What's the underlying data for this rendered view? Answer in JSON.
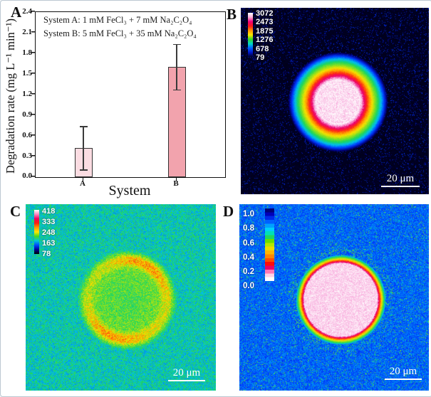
{
  "panel_a": {
    "label": "A",
    "legend_line1": "System A: 1 mM FeCl₃ + 7 mM Na₂C₂O₄",
    "legend_line2": "System B: 5 mM FeCl₃ + 35 mM Na₂C₂O₄",
    "ylabel": "Degradation rate (mg L⁻¹ min⁻¹)",
    "xlabel": "System",
    "yticks": [
      "2.4",
      "2.1",
      "1.8",
      "1.5",
      "1.2",
      "0.9",
      "0.6",
      "0.3",
      "0.0"
    ],
    "categories": [
      "A",
      "B"
    ]
  },
  "panel_b": {
    "label": "B",
    "colorbar_ticks": [
      "3072",
      "2473",
      "1875",
      "1276",
      "678",
      "79"
    ],
    "colorbar_colors": [
      "#ffffff",
      "#f8b0d8",
      "#f00078",
      "#ff1818",
      "#ff9000",
      "#ffe800",
      "#38d820",
      "#00d8c8",
      "#0060ff",
      "#0014c8",
      "#000028"
    ],
    "scalebar": "20 μm"
  },
  "panel_c": {
    "label": "C",
    "colorbar_ticks": [
      "418",
      "333",
      "248",
      "163",
      "78"
    ],
    "colorbar_colors": [
      "#ffffff",
      "#ff88c0",
      "#f00060",
      "#ff2010",
      "#ff9800",
      "#ffe800",
      "#48d820",
      "#00c8d8",
      "#0048ff",
      "#000098",
      "#000000"
    ],
    "scalebar": "20 μm"
  },
  "panel_d": {
    "label": "D",
    "colorbar_ticks": [
      "1.0",
      "0.8",
      "0.6",
      "0.4",
      "0.2",
      "0.0"
    ],
    "colorbar_colors": [
      "#000078",
      "#0000b8",
      "#0028e8",
      "#0060ff",
      "#00a0ff",
      "#00d0f8",
      "#00e0b8",
      "#20d860",
      "#68e000",
      "#b4e800",
      "#ecdc00",
      "#ffb400",
      "#ff8400",
      "#ff4c00",
      "#ff0c08",
      "#e80068",
      "#ff78b4",
      "#ffd2e6",
      "#ffffff"
    ],
    "scalebar": "20 μm"
  },
  "chart_data": [
    {
      "type": "bar",
      "panel": "A",
      "categories": [
        "A",
        "B"
      ],
      "values": [
        0.42,
        1.6
      ],
      "error_bars": [
        0.315,
        0.33
      ],
      "xlabel": "System",
      "ylabel": "Degradation rate (mg L⁻¹ min⁻¹)",
      "ylim": [
        0,
        2.4
      ],
      "ytick_step": 0.3,
      "bar_colors": [
        "#fbdce2",
        "#f2a3ad"
      ],
      "annotations": [
        "System A: 1 mM FeCl₃ + 7 mM Na₂C₂O₄",
        "System B: 5 mM FeCl₃ + 35 mM Na₂C₂O₄"
      ],
      "grid": false,
      "legend_position": "top-left-inside"
    },
    {
      "type": "heatmap",
      "panel": "B",
      "description": "Fluorescence intensity map: bright white-pink circular spot with concentric rainbow rings (pink-red-orange-yellow-green-cyan-blue) on black background",
      "colorbar_ticks": [
        3072,
        2473,
        1875,
        1276,
        678,
        79
      ],
      "colorbar_position": "top-left",
      "scale_bar": "20 μm"
    },
    {
      "type": "heatmap",
      "panel": "C",
      "description": "Noisy cyan-teal map with yellow-green interior disc bounded by speckled orange-red ring",
      "colorbar_ticks": [
        418,
        333,
        248,
        163,
        78
      ],
      "colorbar_position": "top-left",
      "scale_bar": "20 μm"
    },
    {
      "type": "heatmap",
      "panel": "D",
      "description": "Noisy royal-blue map with pale pink disc rimmed by magenta-red-orange-yellow-green bands; normalized 0–1 scale",
      "colorbar_ticks": [
        1.0,
        0.8,
        0.6,
        0.4,
        0.2,
        0.0
      ],
      "colorbar_position": "top-left",
      "scale_bar": "20 μm"
    }
  ]
}
